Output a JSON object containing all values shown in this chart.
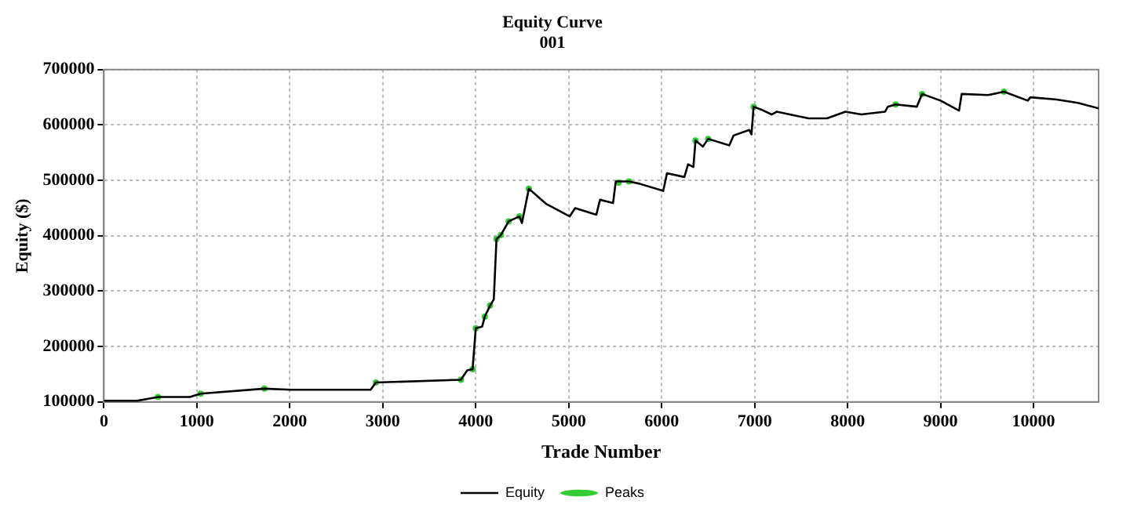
{
  "chart_data": {
    "type": "line",
    "title": "Equity Curve",
    "subtitle": "001",
    "xlabel": "Trade Number",
    "ylabel": "Equity ($)",
    "xlim": [
      0,
      10700
    ],
    "xticks": [
      0,
      1000,
      2000,
      3000,
      4000,
      5000,
      6000,
      7000,
      8000,
      9000,
      10000
    ],
    "ylim": [
      100000,
      700000
    ],
    "yticks": [
      100000,
      200000,
      300000,
      400000,
      500000,
      600000,
      700000
    ],
    "grid": true,
    "legend": "bottom",
    "series": [
      {
        "name": "Equity",
        "color": "#000000",
        "marker": "none",
        "x": [
          0,
          354,
          583,
          926,
          1040,
          1726,
          2011,
          2869,
          2926,
          3840,
          3909,
          3966,
          4000,
          4069,
          4097,
          4154,
          4194,
          4223,
          4269,
          4354,
          4469,
          4497,
          4571,
          4754,
          5011,
          5069,
          5297,
          5337,
          5477,
          5506,
          5648,
          5761,
          6017,
          6057,
          6244,
          6284,
          6341,
          6364,
          6443,
          6500,
          6727,
          6773,
          6943,
          6966,
          6989,
          7068,
          7182,
          7239,
          7438,
          7580,
          7778,
          7977,
          8148,
          8403,
          8432,
          8517,
          8744,
          8801,
          9000,
          9199,
          9227,
          9511,
          9682,
          9938,
          9966,
          10250,
          10477,
          10700
        ],
        "values": [
          102000,
          102000,
          109000,
          109000,
          115000,
          124000,
          122000,
          122000,
          135000,
          140000,
          157000,
          159000,
          233000,
          236000,
          254000,
          274000,
          285000,
          394000,
          401000,
          426000,
          435000,
          423000,
          485000,
          458000,
          435000,
          450000,
          438000,
          465000,
          459000,
          498000,
          498000,
          494000,
          481000,
          513000,
          506000,
          529000,
          524000,
          572000,
          561000,
          575000,
          563000,
          581000,
          591000,
          583000,
          633000,
          628000,
          619000,
          624000,
          617000,
          612000,
          612000,
          624000,
          619000,
          624000,
          633000,
          637000,
          633000,
          656000,
          644000,
          626000,
          656000,
          654000,
          660000,
          644000,
          650000,
          646000,
          640000,
          630000
        ]
      },
      {
        "name": "Peaks",
        "type": "scatter",
        "color": "#33cc33",
        "marker": "circle",
        "x": [
          583,
          1040,
          1726,
          2926,
          3840,
          3966,
          4000,
          4097,
          4154,
          4223,
          4269,
          4354,
          4469,
          4571,
          5537,
          5648,
          6364,
          6500,
          6989,
          8517,
          8801,
          9682
        ],
        "values": [
          109000,
          115000,
          124000,
          135000,
          140000,
          159000,
          233000,
          254000,
          274000,
          394000,
          401000,
          426000,
          435000,
          485000,
          496000,
          498000,
          572000,
          575000,
          633000,
          637000,
          656000,
          660000
        ]
      }
    ]
  }
}
